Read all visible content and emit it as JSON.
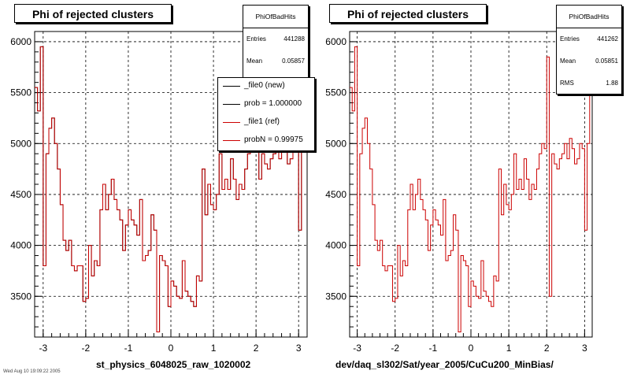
{
  "chart_data": [
    {
      "type": "line",
      "title": "Phi of rejected clusters",
      "xlabel": "st_physics_6048025_raw_1020002",
      "ylabel": "",
      "xlim": [
        -3.2,
        3.2
      ],
      "ylim": [
        3100,
        6100
      ],
      "xticks": [
        "-3",
        "-2",
        "-1",
        "0",
        "1",
        "2",
        "3"
      ],
      "yticks": [
        "3500",
        "4000",
        "4500",
        "5000",
        "5500",
        "6000"
      ],
      "grid": true,
      "stats": {
        "name": "PhiOfBadHits",
        "entries_label": "Entries",
        "entries": "441288",
        "mean_label": "Mean",
        "mean": "0.05857"
      },
      "legend": {
        "placement": "top-right",
        "entries": [
          {
            "label": "_file0 (new)",
            "color": "#000000"
          },
          {
            "label": "prob = 1.000000",
            "color": "#000000"
          },
          {
            "label": "_file1 (ref)",
            "color": "#cc0000"
          },
          {
            "label": "probN = 0.99975",
            "color": "#cc0000"
          }
        ]
      },
      "series": [
        {
          "color": "#000000",
          "values": [
            5550,
            5320,
            5950,
            3800,
            4900,
            5150,
            5250,
            5000,
            4750,
            4400,
            4050,
            3950,
            4050,
            3800,
            3750,
            3800,
            3800,
            3450,
            3480,
            4000,
            3700,
            3850,
            3800,
            4350,
            4600,
            4350,
            4500,
            4650,
            4450,
            4350,
            4250,
            3950,
            4200,
            4350,
            4250,
            4200,
            4100,
            4450,
            3850,
            3900,
            3950,
            4300,
            4150,
            3150,
            3900,
            3850,
            3800,
            3400,
            3650,
            3600,
            3500,
            3480,
            3850,
            3550,
            3500,
            3450,
            3400,
            3700,
            3650,
            4750,
            4300,
            4600,
            4400,
            4350,
            4500,
            4900,
            4550,
            4650,
            4550,
            4850,
            4650,
            4450,
            4600,
            4550,
            4750,
            4900,
            5000,
            4950,
            5700,
            4650,
            4900,
            4800,
            4750,
            4850,
            4900,
            5000,
            4850,
            5050,
            4950,
            4800,
            4850,
            5000,
            4950,
            4150,
            5000,
            5500
          ]
        },
        {
          "color": "#cc0000",
          "values": [
            5550,
            5320,
            5950,
            3800,
            4900,
            5150,
            5250,
            5000,
            4750,
            4400,
            4050,
            3950,
            4050,
            3800,
            3750,
            3800,
            3800,
            3450,
            3480,
            4000,
            3700,
            3850,
            3800,
            4350,
            4600,
            4350,
            4500,
            4650,
            4450,
            4350,
            4250,
            3950,
            4200,
            4350,
            4250,
            4200,
            4100,
            4450,
            3850,
            3900,
            3950,
            4300,
            4150,
            3150,
            3900,
            3850,
            3800,
            3400,
            3650,
            3600,
            3500,
            3480,
            3850,
            3550,
            3500,
            3450,
            3400,
            3700,
            3650,
            4750,
            4300,
            4600,
            4400,
            4350,
            4500,
            4900,
            4550,
            4650,
            4550,
            4850,
            4650,
            4450,
            4600,
            4550,
            4750,
            4900,
            5000,
            4950,
            5850,
            4650,
            4900,
            4800,
            4750,
            4850,
            4900,
            5000,
            4850,
            5050,
            4950,
            4800,
            4850,
            5000,
            4950,
            4150,
            5000,
            5500
          ]
        }
      ]
    },
    {
      "type": "line",
      "title": "Phi of rejected clusters",
      "xlabel": "dev/daq_sl302/Sat/year_2005/CuCu200_MinBias/",
      "ylabel": "",
      "xlim": [
        -3.2,
        3.2
      ],
      "ylim": [
        3100,
        6100
      ],
      "xticks": [
        "-3",
        "-2",
        "-1",
        "0",
        "1",
        "2",
        "3"
      ],
      "yticks": [
        "3500",
        "4000",
        "4500",
        "5000",
        "5500",
        "6000"
      ],
      "grid": true,
      "stats": {
        "name": "PhiOfBadHits",
        "entries_label": "Entries",
        "entries": "441262",
        "mean_label": "Mean",
        "mean": "0.05851",
        "rms_label": "RMS",
        "rms": "1.88"
      },
      "series": [
        {
          "color": "#cc0000",
          "values": [
            5550,
            5320,
            5950,
            3800,
            4900,
            5150,
            5250,
            5000,
            4750,
            4400,
            4050,
            3950,
            4050,
            3800,
            3750,
            3800,
            3800,
            3450,
            3480,
            4000,
            3700,
            3850,
            3800,
            4350,
            4600,
            4350,
            4500,
            4650,
            4450,
            4350,
            4250,
            3950,
            4200,
            4350,
            4250,
            4200,
            4100,
            4450,
            3850,
            3900,
            3950,
            4300,
            4150,
            3150,
            3900,
            3850,
            3800,
            3400,
            3650,
            3600,
            3500,
            3480,
            3850,
            3550,
            3500,
            3450,
            3400,
            3700,
            3650,
            4750,
            4300,
            4600,
            4400,
            4350,
            4500,
            4900,
            4550,
            4650,
            4550,
            4850,
            4650,
            4450,
            4600,
            4550,
            4750,
            4900,
            5000,
            4950,
            5850,
            3500,
            4900,
            4800,
            4750,
            4850,
            4900,
            5000,
            4850,
            5050,
            4950,
            4800,
            4850,
            5000,
            4950,
            4150,
            5000,
            5500
          ]
        }
      ]
    }
  ],
  "footer": "Wed Aug 10 19:09:22 2005"
}
